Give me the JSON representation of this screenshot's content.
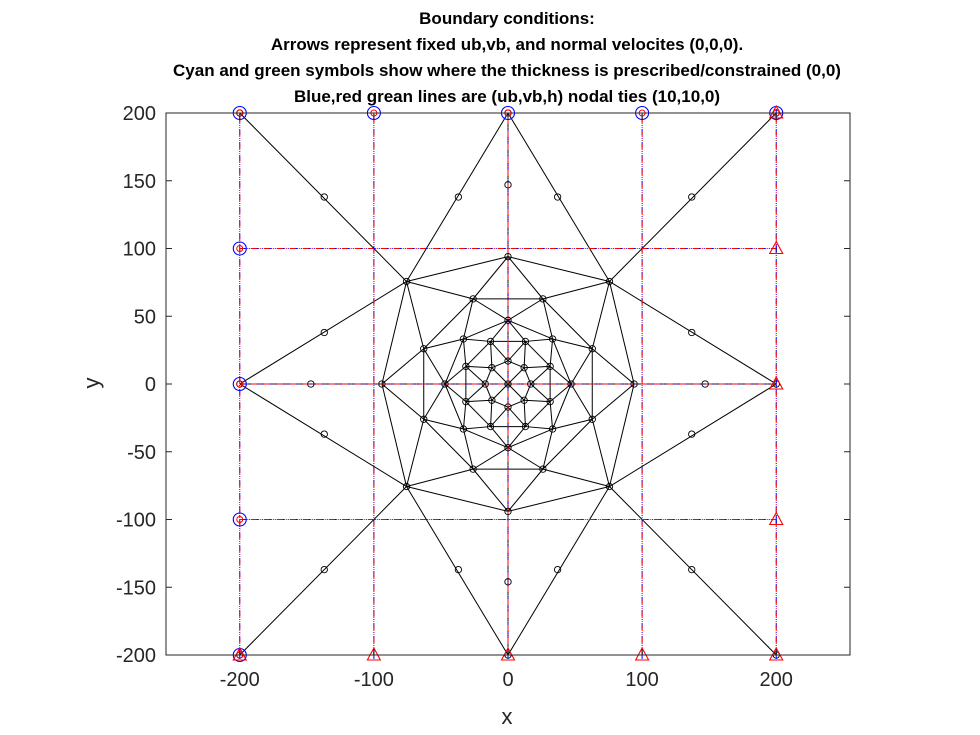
{
  "chart_data": {
    "type": "scatter",
    "title": [
      "Boundary conditions:",
      "Arrows represent fixed ub,vb, and normal velocites (0,0,0).",
      "Cyan and green symbols show where the thickness is prescribed/constrained (0,0)",
      "Blue,red grean lines are (ub,vb,h) nodal ties (10,10,0)"
    ],
    "xlabel": "x",
    "ylabel": "y",
    "xlim": [
      -255,
      255
    ],
    "ylim": [
      -200,
      200
    ],
    "xticks": [
      -200,
      -100,
      0,
      100,
      200
    ],
    "yticks": [
      -200,
      -150,
      -100,
      -50,
      0,
      50,
      100,
      150,
      200
    ],
    "xtick_labels": [
      "-200",
      "-100",
      "0",
      "100",
      "200"
    ],
    "ytick_labels": [
      "-200",
      "-150",
      "-100",
      "-50",
      "0",
      "50",
      "100",
      "150",
      "200"
    ],
    "grid": false,
    "colors": {
      "mesh": "#000000",
      "tie_line_red": "#ff0000",
      "tie_line_blue": "#0000ff",
      "circle_marker": "#0000ff",
      "triangle_marker": "#ff0000",
      "axis": "#262626"
    },
    "mesh": {
      "corners": [
        [
          -200,
          -200
        ],
        [
          200,
          -200
        ],
        [
          200,
          200
        ],
        [
          -200,
          200
        ]
      ],
      "edge_midpoints": [
        [
          0,
          200
        ],
        [
          0,
          -200
        ],
        [
          -200,
          0
        ],
        [
          200,
          0
        ]
      ],
      "ring_nodes": [
        {
          "radius": 107,
          "count": 4,
          "start_angle_deg": 45
        },
        {
          "radius": 94,
          "count": 4,
          "start_angle_deg": 0
        },
        {
          "radius": 68,
          "count": 8,
          "start_angle_deg": 22.5
        },
        {
          "radius": 47,
          "count": 8,
          "start_angle_deg": 0
        },
        {
          "radius": 34,
          "count": 8,
          "start_angle_deg": 22.5
        },
        {
          "radius": 17,
          "count": 8,
          "start_angle_deg": 0
        }
      ],
      "element_centroid_markers": [
        [
          -137,
          138
        ],
        [
          137,
          138
        ],
        [
          -137,
          -137
        ],
        [
          137,
          -137
        ],
        [
          -37,
          138
        ],
        [
          37,
          138
        ],
        [
          -37,
          -137
        ],
        [
          37,
          -137
        ],
        [
          -137,
          38
        ],
        [
          -137,
          -37
        ],
        [
          137,
          38
        ],
        [
          137,
          -37
        ],
        [
          0,
          147
        ],
        [
          0,
          -146
        ],
        [
          -147,
          0
        ],
        [
          147,
          0
        ]
      ]
    },
    "tie_lines": {
      "vertical_x": [
        -200,
        -100,
        0,
        100,
        200
      ],
      "horizontal_y": [
        -200,
        -100,
        0,
        100,
        200
      ]
    },
    "boundary_circles": [
      [
        -200,
        200
      ],
      [
        -200,
        100
      ],
      [
        -200,
        0
      ],
      [
        -200,
        -100
      ],
      [
        -200,
        -200
      ],
      [
        -100,
        200
      ],
      [
        0,
        200
      ],
      [
        100,
        200
      ],
      [
        200,
        200
      ]
    ],
    "boundary_triangles": [
      [
        200,
        200
      ],
      [
        200,
        100
      ],
      [
        200,
        0
      ],
      [
        200,
        -100
      ],
      [
        200,
        -200
      ],
      [
        -200,
        -200
      ],
      [
        -100,
        -200
      ],
      [
        0,
        -200
      ],
      [
        100,
        -200
      ]
    ]
  }
}
